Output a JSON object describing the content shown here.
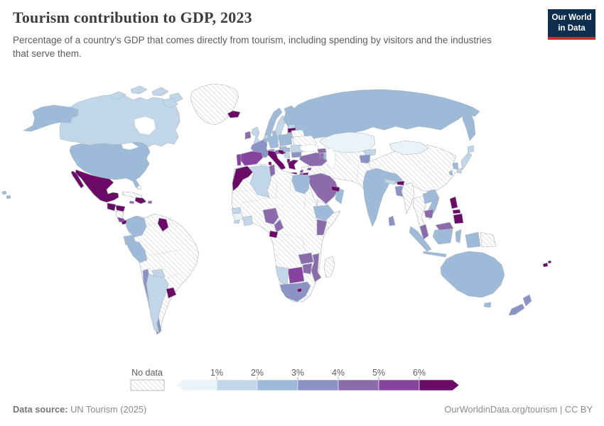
{
  "header": {
    "title": "Tourism contribution to GDP, 2023",
    "subtitle": "Percentage of a country's GDP that comes directly from tourism, including spending by visitors and the industries that serve them."
  },
  "logo": {
    "line1": "Our World",
    "line2": "in Data",
    "navy": "#0f2d4e",
    "red": "#d12d2d"
  },
  "legend": {
    "no_data_label": "No data",
    "tick_labels": [
      "1%",
      "2%",
      "3%",
      "4%",
      "5%",
      "6%"
    ],
    "edges": [
      250,
      305,
      362,
      419,
      476,
      533,
      590,
      645
    ]
  },
  "footer": {
    "source_label": "Data source:",
    "source": "UN Tourism (2025)",
    "url": "OurWorldinData.org/tourism",
    "divider": "|",
    "license": "CC BY"
  },
  "map": {
    "bin_colors": [
      "#eaf3f7",
      "#c1d6e8",
      "#9dbbd9",
      "#8a93c3",
      "#8c6bad",
      "#8843a0",
      "#6c0a68"
    ],
    "border_color": "#aab3bc",
    "hatch_line_color": "#d8d8d8",
    "ocean_color": "#ffffff",
    "countries": {
      "canada": 2,
      "united-states": 3,
      "greenland": 0,
      "mexico": 7,
      "guatemala": 7,
      "honduras": 7,
      "nicaragua": 0,
      "costa-rica": 6,
      "panama": 7,
      "cuba": 0,
      "jamaica": 5,
      "dominican-republic": 7,
      "puerto-rico": 5,
      "bahamas": 0,
      "south-america-nodata": 0,
      "colombia": 3,
      "guyana": 7,
      "ecuador": 3,
      "peru": 3,
      "paraguay": 2,
      "chile": 4,
      "argentina": 2,
      "uruguay": 7,
      "iceland": 7,
      "norway": 3,
      "sweden": 2,
      "finland": 3,
      "estonia": 2,
      "latvia": 7,
      "lithuania": 3,
      "denmark": 3,
      "united-kingdom": 2,
      "ireland": 5,
      "netherlands": 2,
      "belgium": 3,
      "germany": 3,
      "poland": 3,
      "czechia": 3,
      "austria": 5,
      "switzerland": 4,
      "france": 4,
      "spain": 6,
      "portugal": 6,
      "italy": 7,
      "croatia": 7,
      "serbia": 2,
      "albania": 7,
      "greece": 7,
      "hungary": 3,
      "romania": 2,
      "bulgaria": 4,
      "ukraine": 0,
      "belarus": 0,
      "russia": 3,
      "turkey": 5,
      "cyprus": 6,
      "georgia": 5,
      "armenia": 5,
      "azerbaijan": 3,
      "kazakhstan": 1,
      "kyrgyzstan": 2,
      "tajikistan": 4,
      "middle-east-nodata": 0,
      "saudi-arabia": 5,
      "yemen": 0,
      "oman": 3,
      "uae": 7,
      "jordan": 7,
      "israel": 5,
      "lebanon": 6,
      "africa-nodata": 0,
      "morocco": 7,
      "algeria": 2,
      "tunisia": 5,
      "egypt": 3,
      "senegal": 2,
      "guinea": 1,
      "sierra-leone": 2,
      "ivory-coast": 2,
      "nigeria": 5,
      "cameroon": 5,
      "gabon": 7,
      "ethiopia": 3,
      "kenya": 5,
      "zambia": 5,
      "mozambique": 5,
      "zimbabwe": 5,
      "botswana": 6,
      "namibia": 2,
      "south-africa": 4,
      "lesotho": 7,
      "madagascar": 0,
      "china": 0,
      "mongolia": 1,
      "south-korea": 3,
      "taiwan": 3,
      "japan": 2,
      "india": 3,
      "nepal": 2,
      "bhutan": 7,
      "bangladesh": 4,
      "sri-lanka": 4,
      "myanmar": 0,
      "thailand": 0,
      "laos": 3,
      "vietnam": 3,
      "cambodia": 5,
      "malaysia": 5,
      "indonesia": 3,
      "philippines": 7,
      "papua-new-guinea": 0,
      "australia": 3,
      "new-zealand": 4,
      "fiji": 7
    }
  },
  "chart_data": {
    "type": "heatmap",
    "subtype": "choropleth-world-map",
    "title": "Tourism contribution to GDP, 2023",
    "unit": "% of GDP",
    "legend_bins": [
      "<1%",
      "1-2%",
      "2-3%",
      "3-4%",
      "4-5%",
      "5-6%",
      ">6%",
      "No data"
    ],
    "legend_position": "bottom",
    "countries": {
      "Canada": "1-2%",
      "United States": "2-3%",
      "Greenland": "No data",
      "Mexico": ">6%",
      "Guatemala": ">6%",
      "Honduras": ">6%",
      "Nicaragua": "No data",
      "Costa Rica": "5-6%",
      "Panama": ">6%",
      "Cuba": "No data",
      "Jamaica": "4-5%",
      "Dominican Republic": ">6%",
      "Puerto Rico": "4-5%",
      "Bahamas": "No data",
      "Colombia": "2-3%",
      "Venezuela": "No data",
      "Guyana": ">6%",
      "Suriname": "No data",
      "Brazil": "No data",
      "Ecuador": "2-3%",
      "Peru": "2-3%",
      "Bolivia": "No data",
      "Paraguay": "1-2%",
      "Chile": "3-4%",
      "Argentina": "1-2%",
      "Uruguay": ">6%",
      "Iceland": ">6%",
      "Norway": "2-3%",
      "Sweden": "1-2%",
      "Finland": "2-3%",
      "Estonia": "1-2%",
      "Latvia": ">6%",
      "Lithuania": "2-3%",
      "Denmark": "2-3%",
      "United Kingdom": "1-2%",
      "Ireland": "4-5%",
      "Netherlands": "1-2%",
      "Belgium": "2-3%",
      "Germany": "2-3%",
      "Poland": "2-3%",
      "Czechia": "2-3%",
      "Austria": "4-5%",
      "Switzerland": "3-4%",
      "France": "3-4%",
      "Spain": "5-6%",
      "Portugal": "5-6%",
      "Italy": ">6%",
      "Croatia": ">6%",
      "Serbia": "1-2%",
      "Albania": ">6%",
      "Greece": ">6%",
      "Hungary": "2-3%",
      "Romania": "1-2%",
      "Bulgaria": "3-4%",
      "Ukraine": "No data",
      "Belarus": "No data",
      "Russia": "2-3%",
      "Turkey": "4-5%",
      "Cyprus": "5-6%",
      "Georgia": "4-5%",
      "Armenia": "4-5%",
      "Azerbaijan": "2-3%",
      "Kazakhstan": "<1%",
      "Mongolia": "<1%",
      "Kyrgyzstan": "1-2%",
      "Tajikistan": "3-4%",
      "Turkmenistan": "No data",
      "Uzbekistan": "No data",
      "Afghanistan": "No data",
      "Pakistan": "No data",
      "Iran": "No data",
      "Iraq": "No data",
      "Syria": "No data",
      "Lebanon": "5-6%",
      "Israel": "4-5%",
      "Jordan": ">6%",
      "Saudi Arabia": "4-5%",
      "Yemen": "No data",
      "Oman": "2-3%",
      "United Arab Emirates": ">6%",
      "Morocco": ">6%",
      "Algeria": "1-2%",
      "Tunisia": "4-5%",
      "Libya": "No data",
      "Egypt": "2-3%",
      "Sudan": "No data",
      "Ethiopia": "2-3%",
      "Kenya": "4-5%",
      "Somalia": "No data",
      "Nigeria": "4-5%",
      "Cameroon": "4-5%",
      "Gabon": ">6%",
      "Senegal": "1-2%",
      "Guinea": "<1%",
      "Sierra Leone": "1-2%",
      "Ivory Coast": "1-2%",
      "Ghana": "No data",
      "DR Congo": "No data",
      "Angola": "No data",
      "Tanzania": "No data",
      "Zambia": "4-5%",
      "Zimbabwe": "4-5%",
      "Mozambique": "4-5%",
      "Botswana": "5-6%",
      "Namibia": "1-2%",
      "South Africa": "3-4%",
      "Lesotho": ">6%",
      "Madagascar": "No data",
      "China": "No data",
      "North Korea": "No data",
      "South Korea": "2-3%",
      "Japan": "1-2%",
      "Taiwan": "2-3%",
      "India": "2-3%",
      "Nepal": "1-2%",
      "Bhutan": ">6%",
      "Bangladesh": "3-4%",
      "Sri Lanka": "3-4%",
      "Myanmar": "No data",
      "Thailand": "No data",
      "Laos": "2-3%",
      "Vietnam": "2-3%",
      "Cambodia": "4-5%",
      "Malaysia": "4-5%",
      "Indonesia": "2-3%",
      "Philippines": ">6%",
      "Papua New Guinea": "No data",
      "Australia": "2-3%",
      "New Zealand": "3-4%",
      "Fiji": ">6%"
    }
  }
}
